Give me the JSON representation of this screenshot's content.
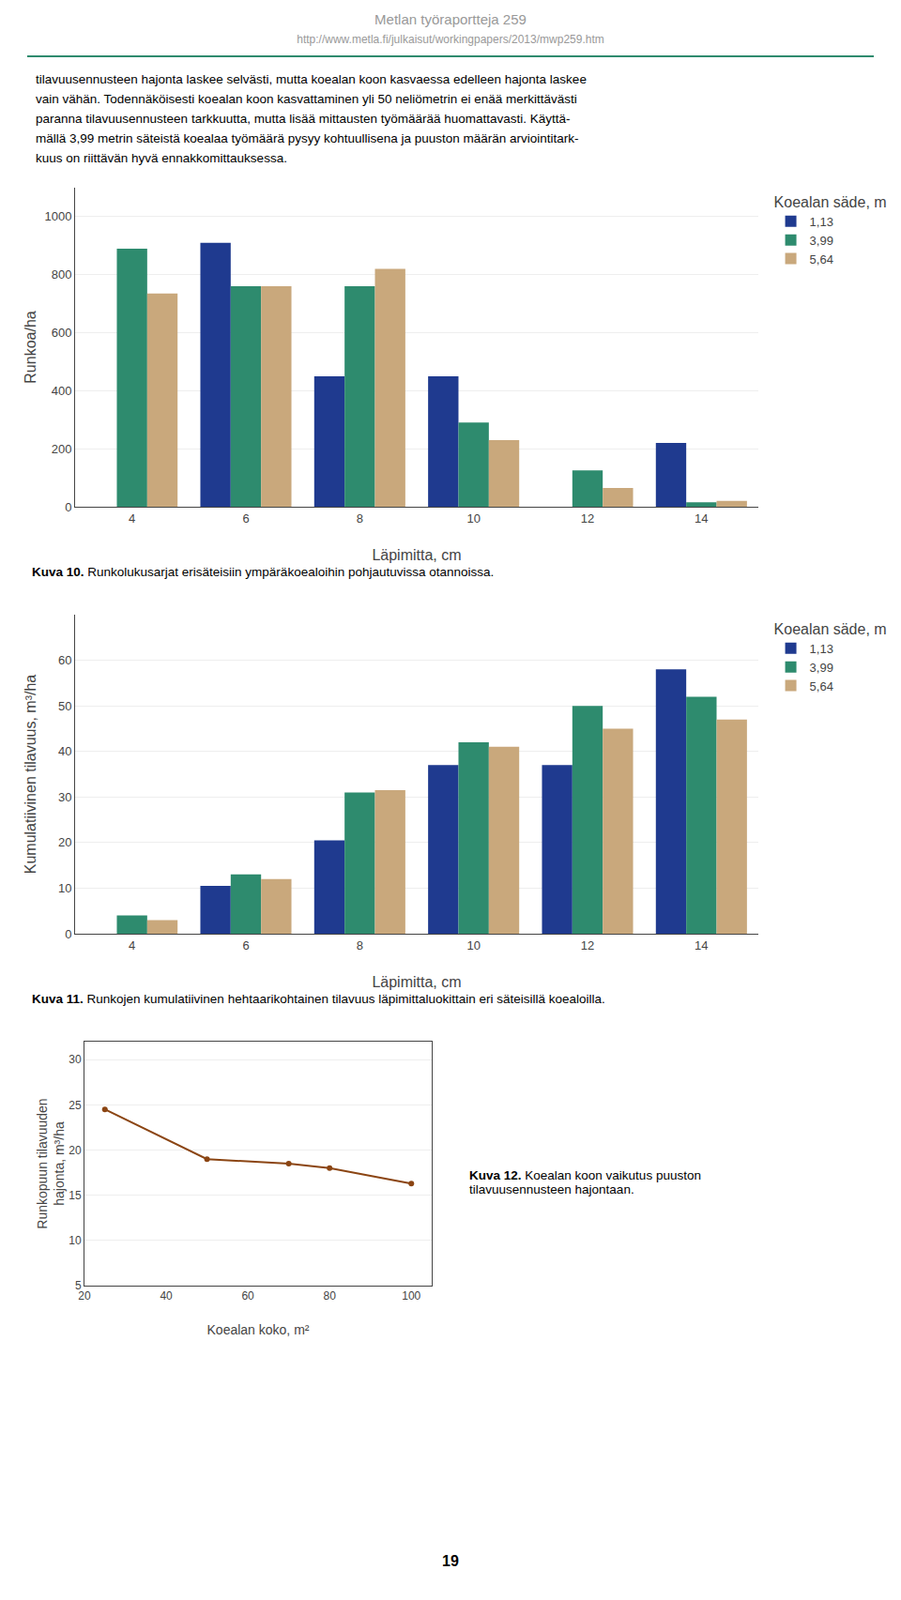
{
  "header": [
    "Metlan työraportteja 259",
    "http://www.metla.fi/julkaisut/workingpapers/2013/mwp259.htm"
  ],
  "paragraph": [
    "tilavuusennusteen hajonta laskee selvästi, mutta koealan koon kasvaessa edelleen hajonta laskee",
    "vain vähän. Todennäköisesti koealan koon kasvattaminen yli 50 neliömetrin ei enää merkittävästi",
    "paranna tilavuusennusteen tarkkuutta, mutta lisää mittausten työmäärää huomattavasti. Käyttä-",
    "mällä 3,99 metrin säteistä koealaa työmäärä pysyy kohtuullisena ja puuston määrän arviointitark-",
    "kuus on riittävän hyvä ennakkomittauksessa."
  ],
  "page_number": "19",
  "chart_data": [
    {
      "type": "bar",
      "xlabel": "Läpimitta, cm",
      "ylabel": "Runkoa/ha",
      "legend_title": "Koealan säde, m",
      "categories": [
        4,
        6,
        8,
        10,
        12,
        14
      ],
      "series": [
        {
          "name": "1,13",
          "color": "#1f3a8f",
          "values": [
            0,
            910,
            450,
            450,
            0,
            220
          ]
        },
        {
          "name": "3,99",
          "color": "#2e8b6e",
          "values": [
            890,
            760,
            760,
            290,
            125,
            15
          ]
        },
        {
          "name": "5,64",
          "color": "#c9a87c",
          "values": [
            735,
            760,
            820,
            230,
            65,
            20
          ]
        }
      ],
      "ylim": [
        0,
        1100
      ],
      "yticks": [
        0,
        200,
        400,
        600,
        800,
        1000
      ],
      "grid": true,
      "caption": [
        "Kuva 10.",
        "Runkolukusarjat erisäteisiin ympäräkoealoihin pohjautuvissa otannoissa."
      ]
    },
    {
      "type": "bar",
      "xlabel": "Läpimitta, cm",
      "ylabel": "Kumulatiivinen tilavuus, m³/ha",
      "legend_title": "Koealan säde, m",
      "categories": [
        4,
        6,
        8,
        10,
        12,
        14
      ],
      "series": [
        {
          "name": "1,13",
          "color": "#1f3a8f",
          "values": [
            0,
            10.5,
            20.5,
            37,
            37,
            58
          ]
        },
        {
          "name": "3,99",
          "color": "#2e8b6e",
          "values": [
            4,
            13,
            31,
            42,
            50,
            52
          ]
        },
        {
          "name": "5,64",
          "color": "#c9a87c",
          "values": [
            3,
            12,
            31.5,
            41,
            45,
            47
          ]
        }
      ],
      "ylim": [
        0,
        70
      ],
      "yticks": [
        0,
        10,
        20,
        30,
        40,
        50,
        60
      ],
      "grid": true,
      "caption": [
        "Kuva 11.",
        "Runkojen kumulatiivinen hehtaarikohtainen tilavuus läpimittaluokittain eri säteisillä koealoilla."
      ]
    },
    {
      "type": "line",
      "xlabel": "Koealan koko, m²",
      "ylabel": "Runkopuun tilavuuden\nhajonta, m³/ha",
      "x": [
        25,
        50,
        70,
        80,
        100
      ],
      "values": [
        24.5,
        19.0,
        18.5,
        18.0,
        16.3
      ],
      "color": "#8B4513",
      "marker": "circle",
      "line_style": "solid",
      "xlim": [
        20,
        105
      ],
      "ylim": [
        5,
        32
      ],
      "xticks": [
        20,
        40,
        60,
        80,
        100
      ],
      "yticks": [
        5,
        10,
        15,
        20,
        25,
        30
      ],
      "grid": true,
      "caption": [
        "Kuva 12.",
        "Koealan koon vaikutus puuston\ntilavuusennusteen hajontaan."
      ]
    }
  ]
}
